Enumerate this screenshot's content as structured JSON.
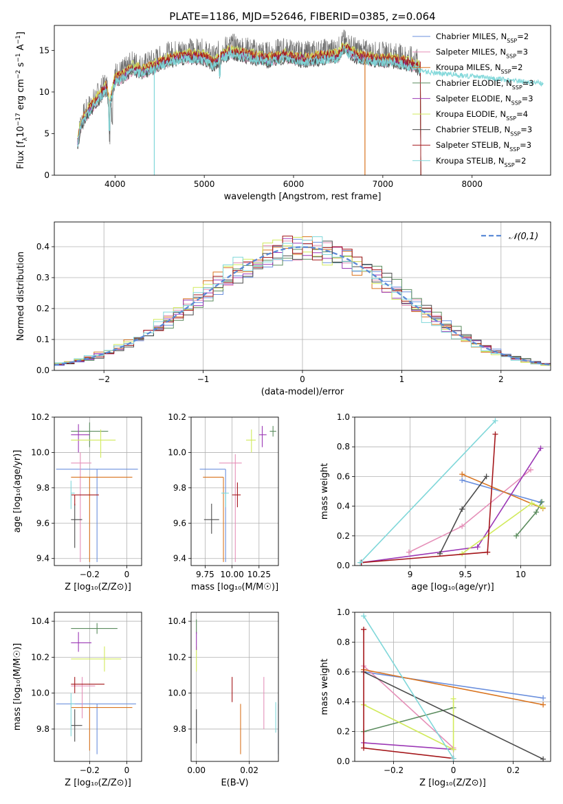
{
  "colors": [
    "#6a8fdd",
    "#e58fb8",
    "#d9731e",
    "#5b8c5e",
    "#9b37b5",
    "#d1ea5b",
    "#4a4a4a",
    "#a4161a",
    "#7fd7d9"
  ],
  "chart_data": [
    {
      "id": "spectrum",
      "type": "line",
      "title": "PLATE=1186, MJD=52646, FIBERID=0385, z=0.064",
      "xlabel": "wavelength [Angstrom, rest frame]",
      "ylabel": "Flux [f_λ10^-17 erg cm^-2 s^-1 A^-1]",
      "xlim": [
        3320,
        8880
      ],
      "ylim": [
        0,
        18
      ],
      "xticks": [
        4000,
        5000,
        6000,
        7000,
        8000
      ],
      "yticks": [
        0,
        5,
        10,
        15
      ],
      "legend_position": "upper-right",
      "legend": [
        "Chabrier MILES, N_SSP=2",
        "Salpeter MILES, N_SSP=3",
        "Kroupa MILES, N_SSP=2",
        "Chabrier ELODIE, N_SSP=3",
        "Salpeter ELODIE, N_SSP=3",
        "Kroupa ELODIE, N_SSP=4",
        "Chabrier STELIB, N_SSP=3",
        "Salpeter STELIB, N_SSP=3",
        "Kroupa STELIB, N_SSP=2"
      ],
      "data_x": [
        3580,
        3620,
        3700,
        3800,
        3900,
        3940,
        4000,
        4100,
        4200,
        4300,
        4400,
        4500,
        4600,
        4800,
        5000,
        5100,
        5200,
        5300,
        5500,
        5700,
        5900,
        6100,
        6300,
        6500,
        6560,
        6700,
        6900,
        7100,
        7300,
        7420
      ],
      "data_y": [
        4,
        6.5,
        8,
        9.5,
        11,
        9,
        12,
        12.5,
        13.5,
        13,
        13.5,
        14,
        14.5,
        15,
        14.8,
        14,
        15,
        15.5,
        15,
        14.5,
        15,
        14.5,
        14.8,
        15,
        16,
        15,
        14.5,
        14.5,
        14,
        13.5
      ],
      "model_end_x": 8800
    },
    {
      "id": "residuals",
      "type": "histogram",
      "xlabel": "(data-model)/error",
      "ylabel": "Normed distribution",
      "xlim": [
        -2.5,
        2.5
      ],
      "ylim": [
        0,
        0.48
      ],
      "xticks": [
        -2,
        -1,
        0,
        1,
        2
      ],
      "yticks": [
        0,
        0.1,
        0.2,
        0.3,
        0.4
      ],
      "grid": true,
      "legend_position": "upper-right",
      "legend": [
        "𝒩(0,1)"
      ],
      "bin_width": 0.1,
      "bin_start": -2.5
    },
    {
      "id": "age-vs-Z",
      "type": "errorbar",
      "xlabel": "Z [log10(Z/Z⊙)]",
      "ylabel": "age  [log10(age/yr)]",
      "xlim": [
        -0.39,
        0.08
      ],
      "ylim": [
        9.36,
        10.2
      ],
      "xticks": [
        -0.2,
        0.0
      ],
      "yticks": [
        9.4,
        9.6,
        9.8,
        10.0,
        10.2
      ],
      "grid": true,
      "points": [
        {
          "x": -0.16,
          "y": 9.905,
          "xlo": -0.38,
          "xhi": 0.06,
          "ylo": 9.38,
          "yhi": 9.905,
          "c": 0
        },
        {
          "x": -0.25,
          "y": 9.94,
          "xlo": -0.3,
          "xhi": -0.19,
          "ylo": 9.38,
          "yhi": 10.0,
          "c": 1
        },
        {
          "x": -0.2,
          "y": 9.86,
          "xlo": -0.3,
          "xhi": 0.03,
          "ylo": 9.38,
          "yhi": 9.86,
          "c": 2
        },
        {
          "x": -0.2,
          "y": 10.12,
          "xlo": -0.3,
          "xhi": -0.1,
          "ylo": 10.03,
          "yhi": 10.17,
          "c": 3
        },
        {
          "x": -0.26,
          "y": 10.1,
          "xlo": -0.3,
          "xhi": -0.2,
          "ylo": 10.0,
          "yhi": 10.16,
          "c": 4
        },
        {
          "x": -0.14,
          "y": 10.07,
          "xlo": -0.3,
          "xhi": -0.06,
          "ylo": 9.97,
          "yhi": 10.13,
          "c": 5
        },
        {
          "x": -0.28,
          "y": 9.62,
          "xlo": -0.3,
          "xhi": -0.24,
          "ylo": 9.46,
          "yhi": 9.71,
          "c": 6
        },
        {
          "x": -0.28,
          "y": 9.76,
          "xlo": -0.3,
          "xhi": -0.15,
          "ylo": 9.7,
          "yhi": 9.76,
          "c": 7
        },
        {
          "x": -0.3,
          "y": 9.77,
          "xlo": -0.3,
          "xhi": -0.28,
          "ylo": 9.68,
          "yhi": 9.84,
          "c": 8
        }
      ]
    },
    {
      "id": "age-vs-mass",
      "type": "errorbar",
      "xlabel": "mass [log10(M/M⊙)]",
      "ylabel": "",
      "xlim": [
        9.62,
        10.43
      ],
      "ylim": [
        9.36,
        10.2
      ],
      "xticks": [
        9.75,
        10.0,
        10.25
      ],
      "xtick_labels": [
        "9.75",
        "10.00",
        "10.25"
      ],
      "yticks": [
        9.4,
        9.6,
        9.8,
        10.0,
        10.2
      ],
      "grid": true,
      "points": [
        {
          "x": 9.94,
          "y": 9.905,
          "xlo": 9.7,
          "xhi": 9.94,
          "ylo": 9.38,
          "yhi": 9.905,
          "c": 0
        },
        {
          "x": 10.03,
          "y": 9.94,
          "xlo": 9.88,
          "xhi": 10.09,
          "ylo": 9.38,
          "yhi": 9.99,
          "c": 1
        },
        {
          "x": 9.92,
          "y": 9.86,
          "xlo": 9.73,
          "xhi": 9.92,
          "ylo": 9.38,
          "yhi": 9.86,
          "c": 2
        },
        {
          "x": 10.38,
          "y": 10.12,
          "xlo": 10.35,
          "xhi": 10.41,
          "ylo": 10.09,
          "yhi": 10.15,
          "c": 3
        },
        {
          "x": 10.28,
          "y": 10.1,
          "xlo": 10.25,
          "xhi": 10.32,
          "ylo": 10.03,
          "yhi": 10.15,
          "c": 4
        },
        {
          "x": 10.18,
          "y": 10.07,
          "xlo": 10.13,
          "xhi": 10.22,
          "ylo": 10.0,
          "yhi": 10.13,
          "c": 5
        },
        {
          "x": 9.81,
          "y": 9.62,
          "xlo": 9.74,
          "xhi": 9.88,
          "ylo": 9.54,
          "yhi": 9.71,
          "c": 6
        },
        {
          "x": 10.05,
          "y": 9.76,
          "xlo": 10.0,
          "xhi": 10.08,
          "ylo": 9.69,
          "yhi": 9.83,
          "c": 7
        },
        {
          "x": 9.94,
          "y": 9.77,
          "xlo": 9.9,
          "xhi": 9.97,
          "ylo": 9.69,
          "yhi": 9.77,
          "c": 8
        }
      ]
    },
    {
      "id": "weight-vs-age",
      "type": "line",
      "xlabel": "age  [log10(age/yr)]",
      "ylabel": "mass weight",
      "xlim": [
        8.5,
        10.27
      ],
      "ylim": [
        0,
        1.0
      ],
      "xticks": [
        9.0,
        9.5,
        10.0
      ],
      "yticks": [
        0,
        0.2,
        0.4,
        0.6,
        0.8,
        1.0
      ],
      "grid": true,
      "series": [
        {
          "c": 0,
          "x": [
            9.47,
            10.18
          ],
          "y": [
            0.575,
            0.425
          ]
        },
        {
          "c": 1,
          "x": [
            8.99,
            9.47,
            10.09
          ],
          "y": [
            0.09,
            0.265,
            0.645
          ]
        },
        {
          "c": 2,
          "x": [
            9.47,
            10.2
          ],
          "y": [
            0.615,
            0.385
          ]
        },
        {
          "c": 3,
          "x": [
            9.96,
            10.14,
            10.19
          ],
          "y": [
            0.2,
            0.36,
            0.43
          ]
        },
        {
          "c": 4,
          "x": [
            8.56,
            9.61,
            10.18
          ],
          "y": [
            0.02,
            0.125,
            0.79
          ]
        },
        {
          "c": 5,
          "x": [
            9.47,
            10.1,
            10.2
          ],
          "y": [
            0.08,
            0.42,
            0.39
          ]
        },
        {
          "c": 6,
          "x": [
            9.27,
            9.47,
            9.69
          ],
          "y": [
            0.08,
            0.38,
            0.6
          ]
        },
        {
          "c": 7,
          "x": [
            8.56,
            9.7,
            9.77
          ],
          "y": [
            0.02,
            0.09,
            0.885
          ]
        },
        {
          "c": 8,
          "x": [
            8.55,
            9.77
          ],
          "y": [
            0.02,
            0.975
          ]
        }
      ]
    },
    {
      "id": "mass-vs-Z",
      "type": "errorbar",
      "xlabel": "Z [log10(Z/Z⊙)]",
      "ylabel": "mass [log10(M/M⊙)]",
      "xlim": [
        -0.39,
        0.08
      ],
      "ylim": [
        9.62,
        10.45
      ],
      "xticks": [
        -0.2,
        0.0
      ],
      "yticks": [
        9.8,
        10.0,
        10.2,
        10.4
      ],
      "grid": true,
      "points": [
        {
          "x": -0.16,
          "y": 9.94,
          "xlo": -0.38,
          "xhi": 0.05,
          "ylo": 9.66,
          "yhi": 9.94,
          "c": 0
        },
        {
          "x": -0.24,
          "y": 10.04,
          "xlo": -0.3,
          "xhi": -0.17,
          "ylo": 9.86,
          "yhi": 10.09,
          "c": 1
        },
        {
          "x": -0.2,
          "y": 9.92,
          "xlo": -0.3,
          "xhi": 0.03,
          "ylo": 9.68,
          "yhi": 9.92,
          "c": 2
        },
        {
          "x": -0.16,
          "y": 10.36,
          "xlo": -0.3,
          "xhi": -0.05,
          "ylo": 10.33,
          "yhi": 10.39,
          "c": 3
        },
        {
          "x": -0.26,
          "y": 10.28,
          "xlo": -0.3,
          "xhi": -0.19,
          "ylo": 10.23,
          "yhi": 10.34,
          "c": 4
        },
        {
          "x": -0.12,
          "y": 10.19,
          "xlo": -0.3,
          "xhi": -0.03,
          "ylo": 10.12,
          "yhi": 10.26,
          "c": 5
        },
        {
          "x": -0.28,
          "y": 9.82,
          "xlo": -0.3,
          "xhi": -0.24,
          "ylo": 9.73,
          "yhi": 9.91,
          "c": 6
        },
        {
          "x": -0.28,
          "y": 10.05,
          "xlo": -0.3,
          "xhi": -0.12,
          "ylo": 10.0,
          "yhi": 10.09,
          "c": 7
        },
        {
          "x": -0.3,
          "y": 9.94,
          "xlo": -0.3,
          "xhi": -0.28,
          "ylo": 9.76,
          "yhi": 10.0,
          "c": 8
        }
      ]
    },
    {
      "id": "mass-vs-EBV",
      "type": "errorbar",
      "xlabel": "E(B-V)",
      "ylabel": "",
      "xlim": [
        -0.002,
        0.031
      ],
      "ylim": [
        9.62,
        10.45
      ],
      "xticks": [
        0.0,
        0.02
      ],
      "xtick_labels": [
        "0.00",
        "0.02"
      ],
      "yticks": [
        9.8,
        10.0,
        10.2,
        10.4
      ],
      "grid": true,
      "points": [
        {
          "x": 0.0,
          "y": 10.2,
          "ylo": 10.12,
          "yhi": 10.26,
          "c": 5
        },
        {
          "x": 0.0,
          "y": 10.36,
          "ylo": 10.33,
          "yhi": 10.41,
          "c": 3
        },
        {
          "x": 0.0,
          "y": 10.28,
          "ylo": 10.24,
          "yhi": 10.34,
          "c": 4
        },
        {
          "x": 0.0,
          "y": 9.82,
          "ylo": 9.72,
          "yhi": 9.91,
          "c": 6
        },
        {
          "x": 0.0135,
          "y": 10.02,
          "ylo": 9.95,
          "yhi": 10.09,
          "c": 7
        },
        {
          "x": 0.0167,
          "y": 9.8,
          "ylo": 9.66,
          "yhi": 9.94,
          "c": 2
        },
        {
          "x": 0.0255,
          "y": 9.95,
          "ylo": 9.8,
          "yhi": 10.09,
          "c": 1
        },
        {
          "x": 0.03,
          "y": 9.87,
          "ylo": 9.78,
          "yhi": 9.95,
          "c": 8
        },
        {
          "x": 0.031,
          "y": 9.8,
          "ylo": 9.66,
          "yhi": 9.94,
          "c": 0
        }
      ]
    },
    {
      "id": "weight-vs-Z",
      "type": "line",
      "xlabel": "Z [log10(Z/Z⊙)]",
      "ylabel": "mass weight",
      "xlim": [
        -0.33,
        0.325
      ],
      "ylim": [
        0,
        1.0
      ],
      "xticks": [
        -0.2,
        0.0,
        0.2
      ],
      "yticks": [
        0,
        0.2,
        0.4,
        0.6,
        0.8,
        1.0
      ],
      "grid": true,
      "series": [
        {
          "c": 0,
          "x": [
            -0.3,
            0.3
          ],
          "y": [
            0.6,
            0.425
          ]
        },
        {
          "c": 1,
          "x": [
            -0.3,
            0.0
          ],
          "y": [
            0.64,
            0.09
          ]
        },
        {
          "c": 2,
          "x": [
            -0.3,
            0.3
          ],
          "y": [
            0.615,
            0.38
          ]
        },
        {
          "c": 3,
          "x": [
            -0.3,
            0.0
          ],
          "y": [
            0.2,
            0.36
          ]
        },
        {
          "c": 4,
          "x": [
            -0.3,
            0.0
          ],
          "y": [
            0.125,
            0.08
          ]
        },
        {
          "c": 5,
          "x": [
            -0.3,
            0.0,
            0.0
          ],
          "y": [
            0.38,
            0.08,
            0.42
          ]
        },
        {
          "c": 6,
          "x": [
            -0.3,
            0.3
          ],
          "y": [
            0.6,
            0.015
          ]
        },
        {
          "c": 7,
          "x": [
            -0.3,
            -0.3,
            0.0
          ],
          "y": [
            0.885,
            0.09,
            0.02
          ]
        },
        {
          "c": 8,
          "x": [
            -0.3,
            0.0
          ],
          "y": [
            0.975,
            0.02
          ]
        }
      ]
    }
  ]
}
